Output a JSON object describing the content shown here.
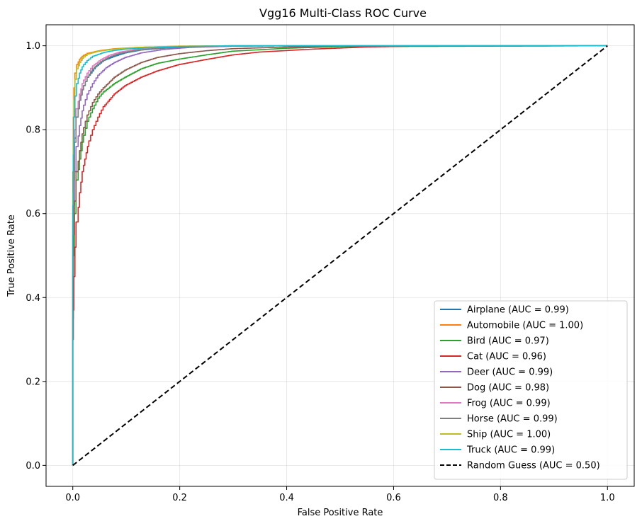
{
  "chart_data": {
    "type": "line",
    "title": "Vgg16 Multi-Class ROC Curve",
    "xlabel": "False Positive Rate",
    "ylabel": "True Positive Rate",
    "xlim": [
      -0.05,
      1.05
    ],
    "ylim": [
      -0.05,
      1.05
    ],
    "xticks": [
      0.0,
      0.2,
      0.4,
      0.6,
      0.8,
      1.0
    ],
    "yticks": [
      0.0,
      0.2,
      0.4,
      0.6,
      0.8,
      1.0
    ],
    "xtick_labels": [
      "0.0",
      "0.2",
      "0.4",
      "0.6",
      "0.8",
      "1.0"
    ],
    "ytick_labels": [
      "0.0",
      "0.2",
      "0.4",
      "0.6",
      "0.8",
      "1.0"
    ],
    "grid": true,
    "legend_position": "lower-right",
    "series": [
      {
        "name": "Airplane (AUC = 0.99)",
        "color": "#1f77b4",
        "dash": false,
        "x": [
          0,
          0.001,
          0.003,
          0.006,
          0.01,
          0.015,
          0.02,
          0.03,
          0.045,
          0.06,
          0.08,
          0.1,
          0.13,
          0.17,
          0.22,
          0.3,
          0.4,
          1.0
        ],
        "y": [
          0,
          0.58,
          0.7,
          0.78,
          0.83,
          0.87,
          0.895,
          0.925,
          0.95,
          0.965,
          0.975,
          0.983,
          0.99,
          0.994,
          0.997,
          0.999,
          1.0,
          1.0
        ]
      },
      {
        "name": "Automobile (AUC = 1.00)",
        "color": "#ff7f0e",
        "dash": false,
        "x": [
          0,
          0.001,
          0.002,
          0.004,
          0.007,
          0.01,
          0.015,
          0.02,
          0.03,
          0.05,
          0.08,
          0.12,
          0.2,
          0.3,
          1.0
        ],
        "y": [
          0,
          0.7,
          0.83,
          0.9,
          0.935,
          0.955,
          0.968,
          0.975,
          0.982,
          0.988,
          0.993,
          0.996,
          0.999,
          1.0,
          1.0
        ]
      },
      {
        "name": "Bird (AUC = 0.97)",
        "color": "#2ca02c",
        "dash": false,
        "x": [
          0,
          0.001,
          0.003,
          0.006,
          0.01,
          0.015,
          0.02,
          0.03,
          0.04,
          0.05,
          0.06,
          0.08,
          0.1,
          0.13,
          0.16,
          0.2,
          0.25,
          0.3,
          0.4,
          0.5,
          1.0
        ],
        "y": [
          0,
          0.35,
          0.5,
          0.6,
          0.68,
          0.73,
          0.77,
          0.82,
          0.85,
          0.875,
          0.89,
          0.91,
          0.925,
          0.945,
          0.958,
          0.968,
          0.978,
          0.987,
          0.994,
          0.998,
          1.0
        ]
      },
      {
        "name": "Cat (AUC = 0.96)",
        "color": "#d62728",
        "dash": false,
        "x": [
          0,
          0.001,
          0.002,
          0.004,
          0.006,
          0.01,
          0.015,
          0.02,
          0.025,
          0.03,
          0.04,
          0.05,
          0.06,
          0.08,
          0.1,
          0.13,
          0.16,
          0.2,
          0.25,
          0.3,
          0.35,
          0.45,
          0.55,
          0.63,
          1.0
        ],
        "y": [
          0,
          0.3,
          0.37,
          0.45,
          0.52,
          0.58,
          0.65,
          0.7,
          0.73,
          0.76,
          0.8,
          0.83,
          0.855,
          0.885,
          0.905,
          0.925,
          0.94,
          0.955,
          0.967,
          0.978,
          0.985,
          0.992,
          0.997,
          0.999,
          1.0
        ]
      },
      {
        "name": "Deer (AUC = 0.99)",
        "color": "#9467bd",
        "dash": false,
        "x": [
          0,
          0.001,
          0.003,
          0.006,
          0.01,
          0.015,
          0.02,
          0.03,
          0.04,
          0.05,
          0.065,
          0.08,
          0.1,
          0.13,
          0.17,
          0.22,
          0.3,
          0.4,
          1.0
        ],
        "y": [
          0,
          0.5,
          0.62,
          0.7,
          0.76,
          0.81,
          0.845,
          0.885,
          0.91,
          0.93,
          0.948,
          0.96,
          0.972,
          0.983,
          0.991,
          0.996,
          0.999,
          1.0,
          1.0
        ]
      },
      {
        "name": "Dog (AUC = 0.98)",
        "color": "#8c564b",
        "dash": false,
        "x": [
          0,
          0.001,
          0.003,
          0.006,
          0.01,
          0.015,
          0.02,
          0.03,
          0.04,
          0.05,
          0.06,
          0.08,
          0.1,
          0.13,
          0.16,
          0.2,
          0.25,
          0.3,
          0.4,
          0.5,
          1.0
        ],
        "y": [
          0,
          0.45,
          0.55,
          0.63,
          0.7,
          0.75,
          0.79,
          0.835,
          0.865,
          0.885,
          0.9,
          0.925,
          0.942,
          0.96,
          0.972,
          0.981,
          0.988,
          0.993,
          0.997,
          0.999,
          1.0
        ]
      },
      {
        "name": "Frog (AUC = 0.99)",
        "color": "#e377c2",
        "dash": false,
        "x": [
          0,
          0.001,
          0.003,
          0.006,
          0.01,
          0.015,
          0.02,
          0.03,
          0.04,
          0.055,
          0.07,
          0.09,
          0.12,
          0.16,
          0.22,
          0.3,
          1.0
        ],
        "y": [
          0,
          0.6,
          0.72,
          0.8,
          0.85,
          0.885,
          0.91,
          0.935,
          0.952,
          0.967,
          0.977,
          0.985,
          0.991,
          0.995,
          0.998,
          1.0,
          1.0
        ]
      },
      {
        "name": "Horse (AUC = 0.99)",
        "color": "#7f7f7f",
        "dash": false,
        "x": [
          0,
          0.001,
          0.003,
          0.006,
          0.01,
          0.015,
          0.02,
          0.03,
          0.04,
          0.055,
          0.07,
          0.09,
          0.12,
          0.16,
          0.22,
          0.3,
          1.0
        ],
        "y": [
          0,
          0.55,
          0.68,
          0.77,
          0.83,
          0.87,
          0.895,
          0.925,
          0.945,
          0.962,
          0.973,
          0.982,
          0.989,
          0.994,
          0.997,
          1.0,
          1.0
        ]
      },
      {
        "name": "Ship (AUC = 1.00)",
        "color": "#bcbd22",
        "dash": false,
        "x": [
          0,
          0.001,
          0.002,
          0.004,
          0.007,
          0.01,
          0.015,
          0.02,
          0.03,
          0.05,
          0.08,
          0.12,
          0.2,
          0.3,
          1.0
        ],
        "y": [
          0,
          0.65,
          0.78,
          0.87,
          0.92,
          0.945,
          0.96,
          0.97,
          0.98,
          0.987,
          0.992,
          0.996,
          0.999,
          1.0,
          1.0
        ]
      },
      {
        "name": "Truck (AUC = 0.99)",
        "color": "#17becf",
        "dash": false,
        "x": [
          0,
          0.001,
          0.002,
          0.004,
          0.007,
          0.01,
          0.015,
          0.02,
          0.03,
          0.04,
          0.06,
          0.08,
          0.1,
          0.14,
          0.2,
          0.3,
          1.0
        ],
        "y": [
          0,
          0.62,
          0.74,
          0.83,
          0.88,
          0.91,
          0.935,
          0.95,
          0.965,
          0.975,
          0.984,
          0.989,
          0.992,
          0.995,
          0.998,
          1.0,
          1.0
        ]
      },
      {
        "name": "Random Guess (AUC = 0.50)",
        "color": "#000000",
        "dash": true,
        "x": [
          0,
          1
        ],
        "y": [
          0,
          1
        ]
      }
    ]
  }
}
